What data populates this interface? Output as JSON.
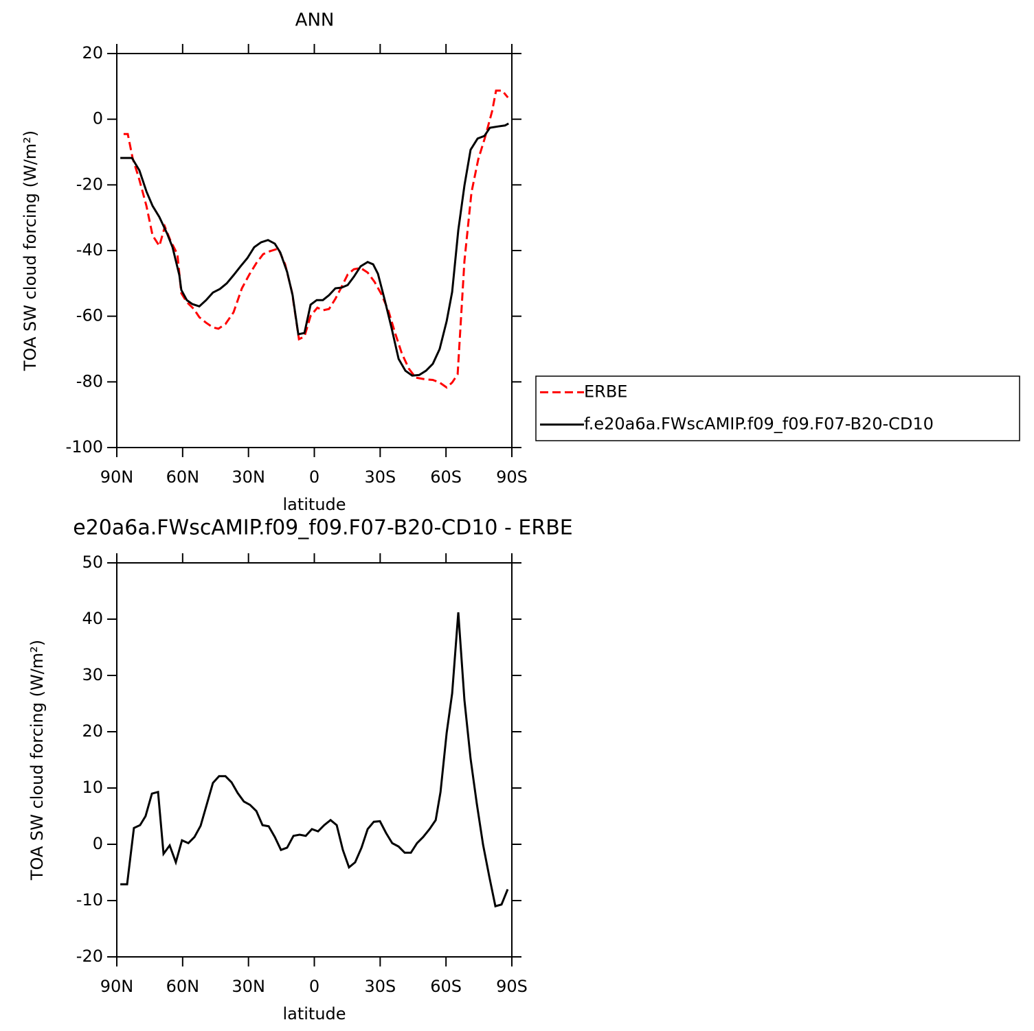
{
  "chart_data": [
    {
      "type": "line",
      "title": "ANN",
      "ylabel": "TOA SW cloud forcing (W/m²)",
      "xlabel": "latitude",
      "xlim": [
        90,
        -90
      ],
      "xticks": [
        {
          "value": 90,
          "label": "90N"
        },
        {
          "value": 60,
          "label": "60N"
        },
        {
          "value": 30,
          "label": "30N"
        },
        0,
        {
          "value": -30,
          "label": "30S"
        },
        {
          "value": -60,
          "label": "60S"
        },
        {
          "value": -90,
          "label": "90S"
        }
      ],
      "ylim": [
        -100,
        20
      ],
      "yticks": [
        -100,
        -80,
        -60,
        -40,
        -20,
        0,
        20
      ],
      "legend": "right",
      "series": [
        {
          "name": "ERBE",
          "color": "#ff0000",
          "line_style": "dashed",
          "x": [
            86.9,
            85.0,
            82.8,
            79.7,
            76.5,
            73.7,
            70.6,
            68.1,
            65.6,
            62.4,
            60.6,
            58.1,
            54.9,
            52.4,
            49.3,
            46.2,
            43.7,
            40.5,
            36.8,
            33.0,
            29.6,
            26.4,
            23.3,
            20.2,
            16.4,
            13.3,
            10.2,
            7.0,
            4.5,
            1.7,
            -1.4,
            -3.9,
            -6.7,
            -9.6,
            -12.4,
            -15.2,
            -18.0,
            -21.1,
            -24.3,
            -27.4,
            -30.5,
            -33.7,
            -36.8,
            -39.9,
            -43.1,
            -46.2,
            -50.3,
            -54.0,
            -57.1,
            -60.3,
            -62.8,
            -65.3,
            -68.4,
            -71.6,
            -74.7,
            -77.8,
            -81.0,
            -82.8,
            -85.6,
            -88.2
          ],
          "values": [
            -4.5,
            -4.5,
            -11.8,
            -18.5,
            -26.4,
            -35.4,
            -38.6,
            -32.7,
            -36.9,
            -41.1,
            -53,
            -55.7,
            -57.8,
            -60.3,
            -62,
            -63.4,
            -63.8,
            -62.4,
            -58.8,
            -51.5,
            -47.3,
            -43.8,
            -41.1,
            -40.2,
            -39.4,
            -44.2,
            -52.6,
            -67,
            -66.2,
            -59.9,
            -57.4,
            -58.2,
            -57.8,
            -54.7,
            -51.1,
            -47.3,
            -45.7,
            -45.3,
            -46.7,
            -49.5,
            -53.2,
            -58.2,
            -65.1,
            -71.4,
            -76,
            -78.7,
            -79.2,
            -79.4,
            -80.2,
            -81.7,
            -80.2,
            -77.7,
            -43.2,
            -22.3,
            -12.2,
            -5.5,
            2.4,
            8.7,
            8.7,
            6.6
          ]
        },
        {
          "name": "f.e20a6a.FWscAMIP.f09_f09.F07-B20-CD10",
          "color": "#000000",
          "line_style": "solid",
          "x": [
            88.4,
            83.1,
            79.7,
            76.5,
            73.7,
            70.6,
            67.1,
            64.6,
            61.5,
            60.6,
            58.1,
            55.6,
            52.4,
            49.3,
            46.2,
            43.0,
            39.9,
            36.8,
            33.6,
            30.5,
            27.4,
            24.3,
            21.1,
            18.0,
            15.5,
            12.4,
            9.9,
            7.3,
            4.5,
            1.7,
            -1.1,
            -3.9,
            -6.7,
            -9.6,
            -12.4,
            -15.2,
            -18.0,
            -21.1,
            -24.3,
            -26.8,
            -29.0,
            -32.1,
            -35.2,
            -38.4,
            -41.5,
            -44.6,
            -47.8,
            -50.9,
            -54.0,
            -57.1,
            -60.3,
            -62.8,
            -65.6,
            -68.4,
            -71.2,
            -74.4,
            -77.5,
            -80.0,
            -83.8,
            -86.9,
            -88.5
          ],
          "values": [
            -11.8,
            -11.8,
            -15.6,
            -22,
            -26.4,
            -29.8,
            -34.8,
            -39,
            -47.5,
            -52,
            -55.1,
            -56.3,
            -57,
            -55.1,
            -52.8,
            -51.7,
            -50,
            -47.5,
            -44.8,
            -42.3,
            -39,
            -37.5,
            -36.8,
            -37.9,
            -40.6,
            -46.5,
            -53.6,
            -65.5,
            -65.1,
            -56.5,
            -55.1,
            -55.1,
            -53.6,
            -51.5,
            -51.3,
            -50.5,
            -48,
            -44.8,
            -43.5,
            -44.2,
            -47.1,
            -55.1,
            -63.6,
            -73,
            -76.6,
            -78.1,
            -77.9,
            -76.6,
            -74.5,
            -70,
            -61.5,
            -52.6,
            -33.8,
            -20.2,
            -9.3,
            -5.9,
            -5.1,
            -2.6,
            -2.2,
            -1.9,
            -1.3
          ]
        }
      ]
    },
    {
      "type": "line",
      "title": "e20a6a.FWscAMIP.f09_f09.F07-B20-CD10 - ERBE",
      "ylabel": "TOA SW cloud forcing (W/m²)",
      "xlabel": "latitude",
      "xlim": [
        90,
        -90
      ],
      "xticks": [
        {
          "value": 90,
          "label": "90N"
        },
        {
          "value": 60,
          "label": "60N"
        },
        {
          "value": 30,
          "label": "30N"
        },
        0,
        {
          "value": -30,
          "label": "30S"
        },
        {
          "value": -60,
          "label": "60S"
        },
        {
          "value": -90,
          "label": "90S"
        }
      ],
      "ylim": [
        -20,
        50
      ],
      "yticks": [
        -20,
        -10,
        0,
        10,
        20,
        30,
        40,
        50
      ],
      "series": [
        {
          "color": "#000000",
          "line_style": "solid",
          "x": [
            88.4,
            85.3,
            82.2,
            79.4,
            76.9,
            74.0,
            71.2,
            68.7,
            65.9,
            63.1,
            60.3,
            57.4,
            54.6,
            51.8,
            49.0,
            46.2,
            43.4,
            40.5,
            37.7,
            34.9,
            32.1,
            29.3,
            26.4,
            23.6,
            20.8,
            18.0,
            15.2,
            12.4,
            9.5,
            6.7,
            3.9,
            1.1,
            -1.7,
            -4.5,
            -7.4,
            -10.2,
            -13.0,
            -15.8,
            -18.6,
            -21.5,
            -24.3,
            -27.1,
            -29.9,
            -32.7,
            -35.5,
            -38.4,
            -41.2,
            -44.0,
            -46.8,
            -49.6,
            -52.5,
            -55.3,
            -57.5,
            -60.3,
            -62.8,
            -65.6,
            -68.4,
            -71.2,
            -74.0,
            -76.9,
            -79.7,
            -82.5,
            -85.3,
            -88.1
          ],
          "values": [
            -7.1,
            -7.1,
            2.9,
            3.4,
            5.0,
            9.0,
            9.3,
            -1.7,
            -0.2,
            -3.2,
            0.7,
            0.2,
            1.3,
            3.3,
            7.1,
            10.9,
            12.1,
            12.1,
            11.0,
            9.1,
            7.6,
            7.0,
            5.9,
            3.4,
            3.2,
            1.3,
            -1.0,
            -0.6,
            1.5,
            1.7,
            1.5,
            2.7,
            2.3,
            3.4,
            4.3,
            3.4,
            -1.0,
            -4.1,
            -3.2,
            -0.6,
            2.7,
            4.0,
            4.1,
            2.0,
            0.2,
            -0.4,
            -1.5,
            -1.5,
            0.2,
            1.3,
            2.7,
            4.3,
            9.3,
            19.8,
            26.8,
            41.2,
            25.6,
            15.2,
            7.3,
            -0.1,
            -5.7,
            -11.0,
            -10.7,
            -8.0
          ]
        }
      ]
    }
  ]
}
